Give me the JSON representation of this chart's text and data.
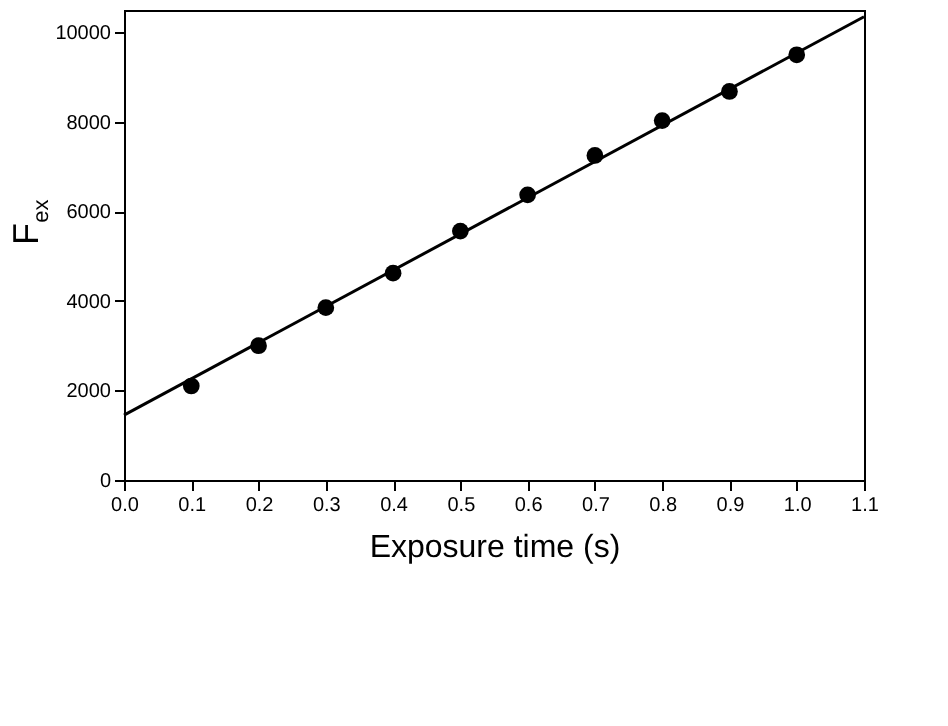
{
  "chart_data": {
    "type": "scatter",
    "xlabel": "Exposure time (s)",
    "ylabel": "F$_{ex}$",
    "x": [
      0.1,
      0.2,
      0.3,
      0.4,
      0.5,
      0.6,
      0.7,
      0.8,
      0.9,
      1.0
    ],
    "series": [
      {
        "color": "#000000",
        "marker": "circle",
        "values": [
          2100,
          3000,
          3850,
          4620,
          5560,
          6370,
          7250,
          8030,
          8680,
          9500
        ]
      },
      {
        "type": "line",
        "color": "#000000",
        "x": [
          0.0,
          1.1
        ],
        "values": [
          1450,
          10350
        ],
        "line_style": "solid"
      }
    ],
    "xlim": [
      0.0,
      1.1
    ],
    "xticks": [
      {
        "value": 0.0,
        "label": "0.0"
      },
      0.1,
      0.2,
      0.3,
      0.4,
      0.5,
      0.6,
      0.7,
      0.8,
      0.9,
      {
        "value": 1.0,
        "label": "1.0"
      },
      1.1
    ],
    "ylim": [
      0,
      10500
    ],
    "yticks": [
      0,
      2000,
      4000,
      6000,
      8000,
      10000
    ],
    "grid": false
  }
}
